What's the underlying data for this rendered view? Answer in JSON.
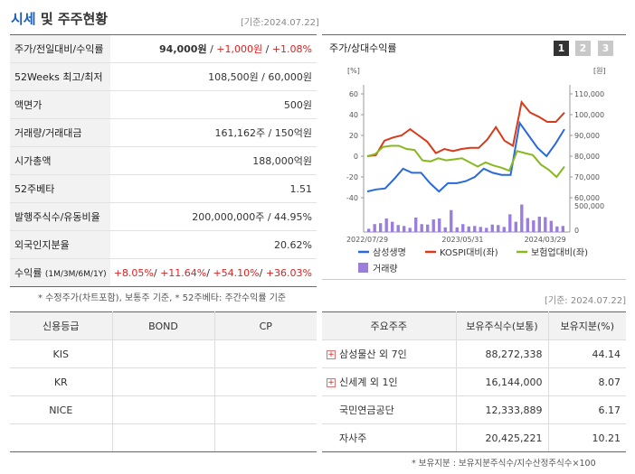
{
  "header": {
    "title_part1": "시세",
    "title_part2": "및 주주현황",
    "asof": "[기준:2024.07.22]"
  },
  "info_rows": [
    {
      "label": "주가/전일대비/수익률",
      "v1": "94,000원",
      "sep1": " / ",
      "v2": "+1,000원",
      "sep2": " / ",
      "v3": "+1.08%"
    },
    {
      "label": "52Weeks 최고/최저",
      "value": "108,500원 / 60,000원"
    },
    {
      "label": "액면가",
      "value": "500원"
    },
    {
      "label": "거래량/거래대금",
      "value": "161,162주 / 150억원"
    },
    {
      "label": "시가총액",
      "value": "188,000억원"
    },
    {
      "label": "52주베타",
      "value": "1.51"
    },
    {
      "label": "발행주식수/유동비율",
      "value": "200,000,000주 / 44.95%"
    },
    {
      "label": "외국인지분율",
      "value": "20.62%"
    }
  ],
  "return_row": {
    "label": "수익률",
    "label_sub": "(1M/3M/6M/1Y)",
    "v1": "+8.05%",
    "v2": "+11.64%",
    "v3": "+54.10%",
    "v4": "+36.03%"
  },
  "footnote_left": "* 수정주가(차트포함), 보통주 기준, * 52주베타: 주간수익률 기준",
  "chart": {
    "title": "주가/상대수익률",
    "tabs": [
      "1",
      "2",
      "3"
    ],
    "left_unit": "[%]",
    "right_unit": "[원]",
    "legend": {
      "s1": "삼성생명",
      "s2": "KOSPI대비(좌)",
      "s3": "보험업대비(좌)",
      "s4": "거래량"
    },
    "colors": {
      "price": "#2a6ad8",
      "kospi": "#d83a1a",
      "ins": "#88b820",
      "vol": "#9b7ddb"
    }
  },
  "chart_data": {
    "type": "line",
    "x_tick_labels": [
      "2022/07/29",
      "2023/05/31",
      "2024/03/29"
    ],
    "left_axis": {
      "ticks": [
        "-40",
        "-20",
        "0",
        "20",
        "40",
        "60"
      ],
      "range": [
        -40,
        60
      ]
    },
    "right_axis": {
      "ticks": [
        "60,000",
        "70,000",
        "80,000",
        "90,000",
        "100,000",
        "110,000"
      ],
      "range": [
        60000,
        110000
      ]
    },
    "volume_axis": {
      "ticks": [
        "500,000",
        "0"
      ],
      "max": 500000
    },
    "series": [
      {
        "name": "삼성생명",
        "axis": "right",
        "color": "#2a6ad8",
        "values": [
          63000,
          64000,
          64500,
          69000,
          74000,
          72000,
          72000,
          67000,
          63000,
          67000,
          67000,
          68000,
          70000,
          74000,
          72000,
          71000,
          71000,
          96000,
          90000,
          84000,
          80000,
          86000,
          93000
        ]
      },
      {
        "name": "KOSPI대비(좌)",
        "axis": "left",
        "color": "#d83a1a",
        "values": [
          0,
          1,
          15,
          18,
          20,
          26,
          20,
          14,
          3,
          7,
          5,
          7,
          8,
          8,
          16,
          28,
          15,
          10,
          52,
          42,
          38,
          33,
          33,
          42
        ]
      },
      {
        "name": "보험업대비(좌)",
        "axis": "left",
        "color": "#88b820",
        "values": [
          0,
          2,
          9,
          10,
          10,
          7,
          6,
          -4,
          -5,
          -2,
          -4,
          -3,
          -2,
          -6,
          -10,
          -6,
          -9,
          -11,
          -14,
          5,
          3,
          1,
          -8,
          -13,
          -20,
          -10
        ]
      },
      {
        "name": "거래량",
        "axis": "volume",
        "color": "#9b7ddb",
        "values": [
          70000,
          170000,
          190000,
          290000,
          220000,
          150000,
          130000,
          90000,
          310000,
          170000,
          160000,
          270000,
          290000,
          100000,
          470000,
          100000,
          170000,
          120000,
          130000,
          110000,
          90000,
          160000,
          150000,
          110000,
          380000,
          220000,
          590000,
          300000,
          250000,
          330000,
          320000,
          240000,
          120000,
          130000
        ]
      }
    ]
  },
  "credit": {
    "headers": [
      "신용등급",
      "BOND",
      "CP"
    ],
    "rows": [
      {
        "agency": "KIS",
        "bond": "",
        "cp": ""
      },
      {
        "agency": "KR",
        "bond": "",
        "cp": ""
      },
      {
        "agency": "NICE",
        "bond": "",
        "cp": ""
      },
      {
        "agency": "",
        "bond": "",
        "cp": ""
      }
    ]
  },
  "holders": {
    "asof": "[기준: 2024.07.22]",
    "headers": [
      "주요주주",
      "보유주식수(보통)",
      "보유지분(%)"
    ],
    "rows": [
      {
        "name": "삼성물산 외 7인",
        "shares": "88,272,338",
        "pct": "44.14",
        "expand": "+"
      },
      {
        "name": "신세계 외 1인",
        "shares": "16,144,000",
        "pct": "8.07",
        "expand": "+"
      },
      {
        "name": "국민연금공단",
        "shares": "12,333,889",
        "pct": "6.17",
        "expand": ""
      },
      {
        "name": "자사주",
        "shares": "20,425,221",
        "pct": "10.21",
        "expand": ""
      }
    ],
    "footnote": "* 보유지분 : 보유지분주식수/지수산정주식수×100"
  }
}
